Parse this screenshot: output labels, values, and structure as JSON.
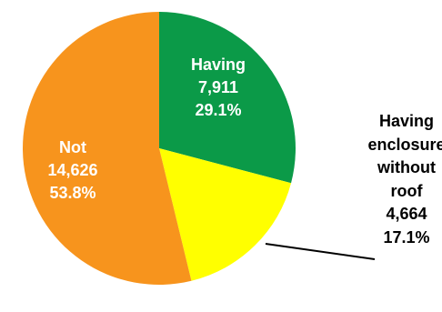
{
  "chart_data": {
    "type": "pie",
    "categories": [
      "Having",
      "Having enclosure without roof",
      "Not"
    ],
    "values": [
      29.1,
      17.1,
      53.8
    ],
    "value_labels": [
      "29.1%",
      "17.1%",
      "53.8%"
    ],
    "counts": [
      7911,
      4664,
      14626
    ],
    "count_labels": [
      "7,911",
      "4,664",
      "14,626"
    ],
    "colors": [
      "#0b9a48",
      "#ffff00",
      "#f7941d"
    ]
  }
}
